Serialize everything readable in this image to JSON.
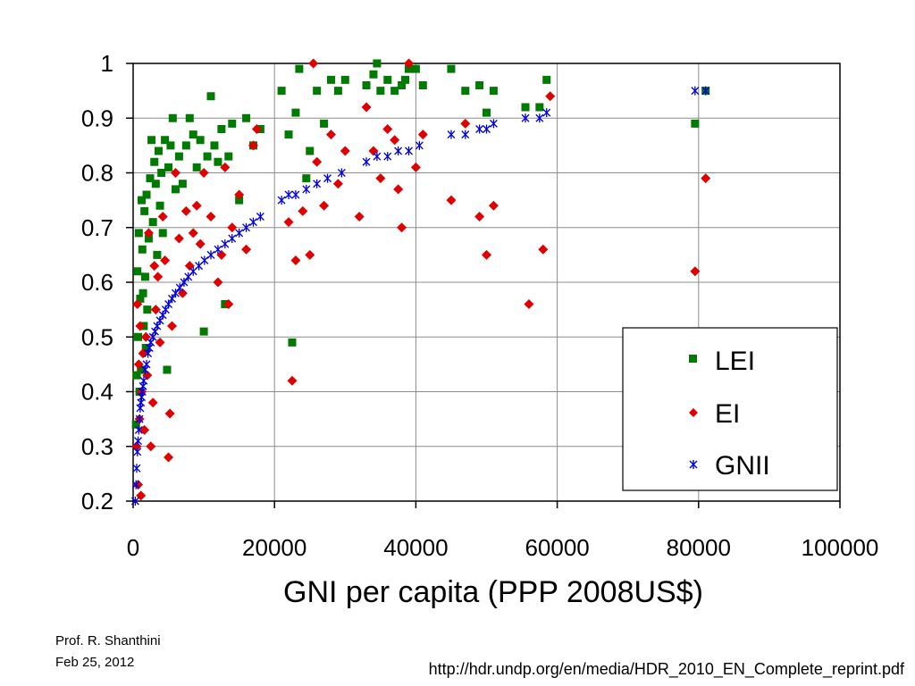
{
  "footer": {
    "author": "Prof. R. Shanthini",
    "date": "Feb 25, 2012",
    "source_url": "http://hdr.undp.org/en/media/HDR_2010_EN_Complete_reprint.pdf"
  },
  "chart_data": {
    "type": "scatter",
    "title": "",
    "xlabel": "GNI per capita (PPP 2008US$)",
    "ylabel": "",
    "xlim": [
      0,
      100000
    ],
    "ylim": [
      0.2,
      1.0
    ],
    "x_ticks": [
      0,
      20000,
      40000,
      60000,
      80000,
      100000
    ],
    "x_tick_labels": [
      "0",
      "20000",
      "40000",
      "60000",
      "80000",
      "100000"
    ],
    "y_ticks": [
      0.2,
      0.3,
      0.4,
      0.5,
      0.6,
      0.7,
      0.8,
      0.9,
      1.0
    ],
    "y_tick_labels": [
      "0.2",
      "0.3",
      "0.4",
      "0.5",
      "0.6",
      "0.7",
      "0.8",
      "0.9",
      "1"
    ],
    "grid": "vertical and horizontal major gridlines",
    "legend_position": "lower-right inside plot",
    "series": [
      {
        "name": "LEI",
        "marker": "square",
        "color": "#007a00",
        "points": [
          [
            400,
            0.34
          ],
          [
            500,
            0.43
          ],
          [
            600,
            0.62
          ],
          [
            700,
            0.5
          ],
          [
            800,
            0.69
          ],
          [
            900,
            0.4
          ],
          [
            1000,
            0.57
          ],
          [
            1100,
            0.44
          ],
          [
            1200,
            0.75
          ],
          [
            1300,
            0.66
          ],
          [
            1400,
            0.58
          ],
          [
            1500,
            0.52
          ],
          [
            1600,
            0.73
          ],
          [
            1700,
            0.61
          ],
          [
            1800,
            0.48
          ],
          [
            1900,
            0.76
          ],
          [
            2000,
            0.55
          ],
          [
            2200,
            0.68
          ],
          [
            2400,
            0.79
          ],
          [
            2600,
            0.86
          ],
          [
            2800,
            0.71
          ],
          [
            3000,
            0.82
          ],
          [
            3200,
            0.78
          ],
          [
            3400,
            0.65
          ],
          [
            3600,
            0.84
          ],
          [
            3800,
            0.74
          ],
          [
            4000,
            0.8
          ],
          [
            4200,
            0.69
          ],
          [
            4500,
            0.86
          ],
          [
            4800,
            0.44
          ],
          [
            5000,
            0.81
          ],
          [
            5300,
            0.85
          ],
          [
            5600,
            0.9
          ],
          [
            6000,
            0.77
          ],
          [
            6500,
            0.83
          ],
          [
            7000,
            0.78
          ],
          [
            7500,
            0.85
          ],
          [
            8000,
            0.9
          ],
          [
            8500,
            0.87
          ],
          [
            9000,
            0.81
          ],
          [
            9500,
            0.86
          ],
          [
            10000,
            0.51
          ],
          [
            10500,
            0.83
          ],
          [
            11000,
            0.94
          ],
          [
            11500,
            0.85
          ],
          [
            12000,
            0.82
          ],
          [
            12500,
            0.88
          ],
          [
            13000,
            0.56
          ],
          [
            13500,
            0.83
          ],
          [
            14000,
            0.89
          ],
          [
            15000,
            0.75
          ],
          [
            16000,
            0.9
          ],
          [
            17000,
            0.85
          ],
          [
            18000,
            0.88
          ],
          [
            21000,
            0.95
          ],
          [
            22000,
            0.87
          ],
          [
            22500,
            0.49
          ],
          [
            23000,
            0.91
          ],
          [
            23500,
            0.99
          ],
          [
            24500,
            0.79
          ],
          [
            25000,
            0.84
          ],
          [
            26000,
            0.95
          ],
          [
            27000,
            0.89
          ],
          [
            28000,
            0.97
          ],
          [
            29000,
            0.95
          ],
          [
            30000,
            0.97
          ],
          [
            33000,
            0.96
          ],
          [
            34000,
            0.98
          ],
          [
            34500,
            1.0
          ],
          [
            35000,
            0.95
          ],
          [
            36000,
            0.97
          ],
          [
            37000,
            0.95
          ],
          [
            38000,
            0.96
          ],
          [
            38500,
            0.97
          ],
          [
            39000,
            0.99
          ],
          [
            40000,
            0.99
          ],
          [
            41000,
            0.96
          ],
          [
            45000,
            0.99
          ],
          [
            47000,
            0.95
          ],
          [
            49000,
            0.96
          ],
          [
            50000,
            0.91
          ],
          [
            51000,
            0.95
          ],
          [
            55500,
            0.92
          ],
          [
            57500,
            0.92
          ],
          [
            58500,
            0.97
          ],
          [
            79500,
            0.89
          ],
          [
            81000,
            0.95
          ]
        ]
      },
      {
        "name": "EI",
        "marker": "diamond",
        "color": "#e00000",
        "points": [
          [
            500,
            0.3
          ],
          [
            600,
            0.56
          ],
          [
            700,
            0.23
          ],
          [
            800,
            0.45
          ],
          [
            900,
            0.35
          ],
          [
            1000,
            0.52
          ],
          [
            1100,
            0.21
          ],
          [
            1200,
            0.4
          ],
          [
            1400,
            0.47
          ],
          [
            1600,
            0.33
          ],
          [
            1800,
            0.5
          ],
          [
            2000,
            0.43
          ],
          [
            2200,
            0.69
          ],
          [
            2500,
            0.3
          ],
          [
            2800,
            0.38
          ],
          [
            3000,
            0.63
          ],
          [
            3200,
            0.55
          ],
          [
            3500,
            0.61
          ],
          [
            3800,
            0.49
          ],
          [
            4200,
            0.72
          ],
          [
            4500,
            0.64
          ],
          [
            5000,
            0.28
          ],
          [
            5200,
            0.36
          ],
          [
            5500,
            0.52
          ],
          [
            6000,
            0.8
          ],
          [
            6500,
            0.68
          ],
          [
            7000,
            0.58
          ],
          [
            7500,
            0.73
          ],
          [
            8000,
            0.63
          ],
          [
            8500,
            0.69
          ],
          [
            9000,
            0.74
          ],
          [
            9500,
            0.67
          ],
          [
            10000,
            0.8
          ],
          [
            11000,
            0.72
          ],
          [
            12000,
            0.6
          ],
          [
            12500,
            0.65
          ],
          [
            13000,
            0.81
          ],
          [
            13500,
            0.56
          ],
          [
            14000,
            0.7
          ],
          [
            15000,
            0.76
          ],
          [
            16000,
            0.66
          ],
          [
            17000,
            0.85
          ],
          [
            17500,
            0.88
          ],
          [
            22000,
            0.71
          ],
          [
            22500,
            0.42
          ],
          [
            23000,
            0.64
          ],
          [
            24000,
            0.73
          ],
          [
            25000,
            0.65
          ],
          [
            25500,
            1.0
          ],
          [
            26000,
            0.82
          ],
          [
            27000,
            0.74
          ],
          [
            28000,
            0.87
          ],
          [
            29000,
            0.78
          ],
          [
            30000,
            0.84
          ],
          [
            32000,
            0.72
          ],
          [
            33000,
            0.92
          ],
          [
            34000,
            0.84
          ],
          [
            35000,
            0.79
          ],
          [
            36000,
            0.88
          ],
          [
            37000,
            0.86
          ],
          [
            37500,
            0.77
          ],
          [
            38000,
            0.7
          ],
          [
            39000,
            1.0
          ],
          [
            40000,
            0.81
          ],
          [
            41000,
            0.87
          ],
          [
            45000,
            0.75
          ],
          [
            47000,
            0.89
          ],
          [
            49000,
            0.72
          ],
          [
            50000,
            0.65
          ],
          [
            51000,
            0.74
          ],
          [
            56000,
            0.56
          ],
          [
            58000,
            0.66
          ],
          [
            59000,
            0.94
          ],
          [
            79500,
            0.62
          ],
          [
            81000,
            0.79
          ]
        ]
      },
      {
        "name": "GNII",
        "marker": "x-star",
        "color": "#0000dd",
        "points": [
          [
            300,
            0.2
          ],
          [
            400,
            0.23
          ],
          [
            500,
            0.26
          ],
          [
            600,
            0.29
          ],
          [
            700,
            0.31
          ],
          [
            800,
            0.33
          ],
          [
            900,
            0.35
          ],
          [
            1000,
            0.37
          ],
          [
            1100,
            0.38
          ],
          [
            1200,
            0.39
          ],
          [
            1300,
            0.4
          ],
          [
            1400,
            0.41
          ],
          [
            1500,
            0.42
          ],
          [
            1700,
            0.44
          ],
          [
            1900,
            0.45
          ],
          [
            2100,
            0.47
          ],
          [
            2300,
            0.48
          ],
          [
            2500,
            0.49
          ],
          [
            2800,
            0.5
          ],
          [
            3100,
            0.51
          ],
          [
            3400,
            0.52
          ],
          [
            3800,
            0.53
          ],
          [
            4200,
            0.54
          ],
          [
            4600,
            0.55
          ],
          [
            5000,
            0.56
          ],
          [
            5500,
            0.57
          ],
          [
            6000,
            0.58
          ],
          [
            6600,
            0.59
          ],
          [
            7200,
            0.6
          ],
          [
            7800,
            0.61
          ],
          [
            8500,
            0.62
          ],
          [
            9300,
            0.63
          ],
          [
            10100,
            0.64
          ],
          [
            11000,
            0.65
          ],
          [
            12000,
            0.66
          ],
          [
            13000,
            0.67
          ],
          [
            14000,
            0.68
          ],
          [
            15000,
            0.69
          ],
          [
            16000,
            0.7
          ],
          [
            17000,
            0.71
          ],
          [
            18000,
            0.72
          ],
          [
            21000,
            0.75
          ],
          [
            22000,
            0.76
          ],
          [
            23000,
            0.76
          ],
          [
            24500,
            0.77
          ],
          [
            26000,
            0.78
          ],
          [
            27500,
            0.79
          ],
          [
            29500,
            0.8
          ],
          [
            33000,
            0.82
          ],
          [
            34500,
            0.83
          ],
          [
            36000,
            0.83
          ],
          [
            37500,
            0.84
          ],
          [
            39000,
            0.84
          ],
          [
            40500,
            0.85
          ],
          [
            45000,
            0.87
          ],
          [
            47000,
            0.87
          ],
          [
            49000,
            0.88
          ],
          [
            50000,
            0.88
          ],
          [
            51000,
            0.89
          ],
          [
            55500,
            0.9
          ],
          [
            57500,
            0.9
          ],
          [
            58500,
            0.91
          ],
          [
            79500,
            0.95
          ],
          [
            81000,
            0.95
          ]
        ]
      }
    ]
  }
}
